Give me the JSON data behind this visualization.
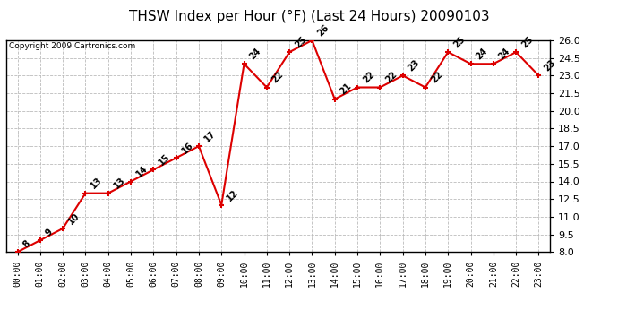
{
  "title": "THSW Index per Hour (°F) (Last 24 Hours) 20090103",
  "copyright": "Copyright 2009 Cartronics.com",
  "hours": [
    "00:00",
    "01:00",
    "02:00",
    "03:00",
    "04:00",
    "05:00",
    "06:00",
    "07:00",
    "08:00",
    "09:00",
    "10:00",
    "11:00",
    "12:00",
    "13:00",
    "14:00",
    "15:00",
    "16:00",
    "17:00",
    "18:00",
    "19:00",
    "20:00",
    "21:00",
    "22:00",
    "23:00"
  ],
  "data_values": [
    8,
    9,
    10,
    13,
    13,
    14,
    15,
    16,
    17,
    12,
    24,
    22,
    25,
    26,
    21,
    22,
    22,
    23,
    22,
    25,
    24,
    24,
    25,
    23
  ],
  "ylim": [
    8.0,
    26.0
  ],
  "yticks": [
    8.0,
    9.5,
    11.0,
    12.5,
    14.0,
    15.5,
    17.0,
    18.5,
    20.0,
    21.5,
    23.0,
    24.5,
    26.0
  ],
  "line_color": "#dd0000",
  "bg_color": "#ffffff",
  "grid_color": "#bbbbbb",
  "title_fontsize": 11,
  "label_fontsize": 7,
  "copyright_fontsize": 6.5,
  "annot_fontsize": 7
}
